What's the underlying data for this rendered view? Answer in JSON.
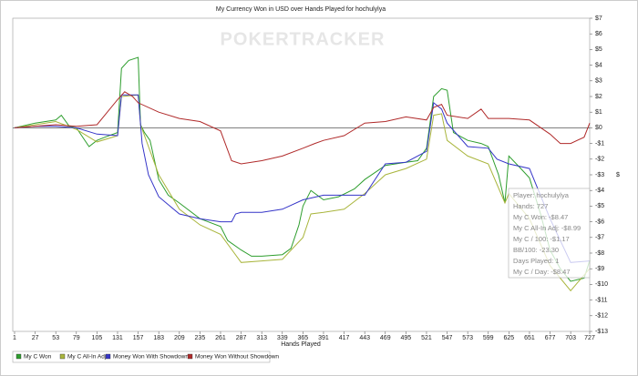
{
  "chart_data": {
    "type": "line",
    "title": "My Currency Won in USD over Hands Played for hochulylya",
    "watermark": "POKERTRACKER",
    "xlabel": "Hands Played",
    "ylabel": "$",
    "xlim": [
      1,
      727
    ],
    "xticks": [
      1,
      27,
      53,
      79,
      105,
      131,
      157,
      183,
      209,
      235,
      261,
      287,
      313,
      339,
      365,
      391,
      417,
      443,
      469,
      495,
      521,
      547,
      573,
      599,
      625,
      651,
      677,
      703,
      727
    ],
    "ylim": [
      -13,
      7
    ],
    "yticks": [
      {
        "value": 7,
        "label": "$7"
      },
      {
        "value": 6,
        "label": "$6"
      },
      {
        "value": 5,
        "label": "$5"
      },
      {
        "value": 4,
        "label": "$4"
      },
      {
        "value": 3,
        "label": "$3"
      },
      {
        "value": 2,
        "label": "$2"
      },
      {
        "value": 1,
        "label": "$1"
      },
      {
        "value": 0,
        "label": "$0"
      },
      {
        "value": -1,
        "label": "-$1"
      },
      {
        "value": -2,
        "label": "-$2"
      },
      {
        "value": -3,
        "label": "-$3"
      },
      {
        "value": -4,
        "label": "-$4"
      },
      {
        "value": -5,
        "label": "-$5"
      },
      {
        "value": -6,
        "label": "-$6"
      },
      {
        "value": -7,
        "label": "-$7"
      },
      {
        "value": -8,
        "label": "-$8"
      },
      {
        "value": -9,
        "label": "-$9"
      },
      {
        "value": -10,
        "label": "-$10"
      },
      {
        "value": -11,
        "label": "-$11"
      },
      {
        "value": -12,
        "label": "-$12"
      },
      {
        "value": -13,
        "label": "-$13"
      }
    ],
    "series": [
      {
        "name": "My C Won",
        "color": "#2e9e2e",
        "x": [
          1,
          27,
          53,
          60,
          70,
          79,
          95,
          105,
          115,
          131,
          136,
          145,
          157,
          160,
          165,
          172,
          183,
          195,
          209,
          235,
          261,
          270,
          287,
          300,
          313,
          339,
          350,
          360,
          365,
          375,
          391,
          410,
          430,
          443,
          469,
          495,
          510,
          521,
          530,
          540,
          547,
          555,
          573,
          590,
          599,
          612,
          620,
          625,
          640,
          651,
          665,
          677,
          690,
          703,
          720,
          727
        ],
        "values": [
          0,
          0.3,
          0.5,
          0.8,
          0.1,
          0,
          -1.2,
          -0.8,
          -0.6,
          -0.3,
          3.8,
          4.3,
          4.5,
          0.2,
          -0.3,
          -0.8,
          -3.3,
          -4.3,
          -4.8,
          -5.8,
          -6.3,
          -7.2,
          -7.8,
          -8.2,
          -8.2,
          -8.1,
          -7.7,
          -6.2,
          -5.0,
          -4.0,
          -4.6,
          -4.4,
          -3.9,
          -3.3,
          -2.4,
          -2.2,
          -2.1,
          -1.3,
          2.0,
          2.5,
          2.4,
          -0.3,
          -0.8,
          -1.0,
          -1.2,
          -3.0,
          -4.8,
          -1.8,
          -2.6,
          -3.2,
          -5.5,
          -7.8,
          -9.0,
          -9.8,
          -9.6,
          -8.47
        ]
      },
      {
        "name": "My C All-In Adj",
        "color": "#a9b53c",
        "x": [
          1,
          27,
          53,
          79,
          105,
          131,
          136,
          157,
          160,
          183,
          209,
          235,
          261,
          287,
          313,
          339,
          365,
          375,
          391,
          417,
          443,
          469,
          495,
          521,
          530,
          540,
          547,
          573,
          599,
          620,
          625,
          651,
          677,
          703,
          727
        ],
        "values": [
          0,
          0.2,
          0.4,
          -0.1,
          -0.9,
          -0.5,
          2.0,
          2.1,
          0.2,
          -3.0,
          -5.2,
          -6.2,
          -6.8,
          -8.6,
          -8.5,
          -8.4,
          -7.0,
          -5.5,
          -5.4,
          -5.2,
          -4.2,
          -3.0,
          -2.6,
          -2.0,
          0.8,
          0.9,
          -0.8,
          -1.8,
          -2.3,
          -4.8,
          -4.2,
          -5.8,
          -8.8,
          -10.4,
          -8.99
        ]
      },
      {
        "name": "Money Won With Showdown",
        "color": "#3535c8",
        "x": [
          1,
          27,
          53,
          79,
          105,
          131,
          136,
          157,
          162,
          170,
          183,
          209,
          235,
          261,
          275,
          280,
          287,
          313,
          339,
          365,
          391,
          443,
          469,
          495,
          521,
          530,
          540,
          547,
          573,
          599,
          610,
          625,
          651,
          677,
          703,
          727
        ],
        "values": [
          0,
          0.1,
          0.1,
          0,
          -0.4,
          -0.5,
          2.1,
          2.1,
          -1.0,
          -3.0,
          -4.4,
          -5.5,
          -5.8,
          -6.0,
          -6.0,
          -5.5,
          -5.4,
          -5.4,
          -5.2,
          -4.6,
          -4.3,
          -4.3,
          -2.3,
          -2.2,
          -1.5,
          1.6,
          1.2,
          0.3,
          -1.2,
          -1.3,
          -2.0,
          -2.3,
          -2.6,
          -5.8,
          -8.6,
          -8.5
        ]
      },
      {
        "name": "Money Won Without Showdown",
        "color": "#b02a2a",
        "x": [
          1,
          53,
          79,
          105,
          131,
          140,
          150,
          157,
          183,
          209,
          235,
          261,
          275,
          287,
          313,
          339,
          365,
          380,
          391,
          417,
          443,
          469,
          495,
          521,
          530,
          540,
          547,
          573,
          590,
          599,
          625,
          651,
          677,
          690,
          703,
          720,
          727
        ],
        "values": [
          0,
          0.2,
          0.1,
          0.2,
          1.8,
          2.3,
          2.0,
          1.6,
          1.0,
          0.6,
          0.4,
          -0.2,
          -2.1,
          -2.3,
          -2.1,
          -1.8,
          -1.3,
          -1.0,
          -0.8,
          -0.5,
          0.3,
          0.4,
          0.7,
          0.5,
          1.3,
          1.5,
          0.8,
          0.6,
          1.2,
          0.6,
          0.6,
          0.5,
          -0.4,
          -1.0,
          -1.0,
          -0.6,
          0.3
        ]
      }
    ],
    "tooltip": [
      "Player: hochulylya",
      "Hands: 727",
      "My C Won: -$8.47",
      "My C All-In Adj: -$8.99",
      "My C / 100: -$1.17",
      "BB/100: -23.30",
      "Days Played: 1",
      "My C / Day: -$8.47"
    ]
  }
}
